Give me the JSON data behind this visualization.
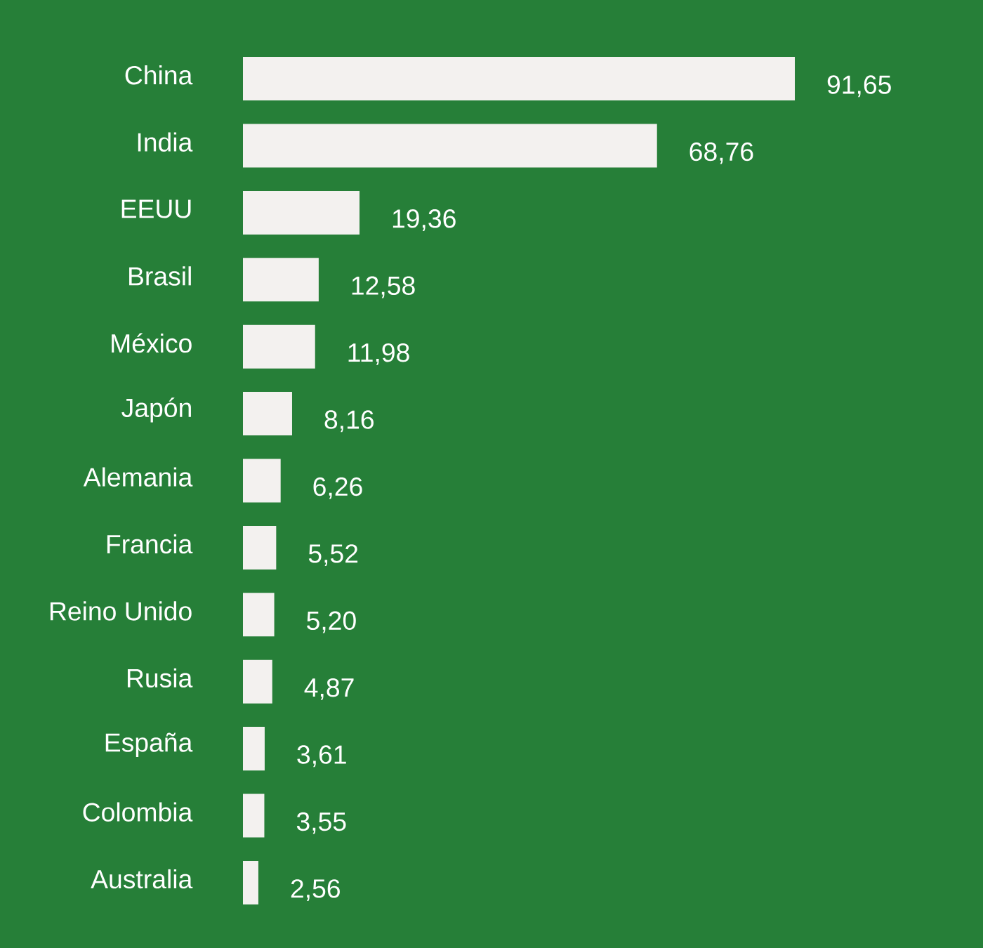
{
  "chart_data": {
    "type": "bar",
    "orientation": "horizontal",
    "categories": [
      "China",
      "India",
      "EEUU",
      "Brasil",
      "México",
      "Japón",
      "Alemania",
      "Francia",
      "Reino Unido",
      "Rusia",
      "España",
      "Colombia",
      "Australia"
    ],
    "values": [
      91.65,
      68.76,
      19.36,
      12.58,
      11.98,
      8.16,
      6.26,
      5.52,
      5.2,
      4.87,
      3.61,
      3.55,
      2.56
    ],
    "value_labels": [
      "91,65",
      "68,76",
      "19,36",
      "12,58",
      "11,98",
      "8,16",
      "6,26",
      "5,52",
      "5,20",
      "4,87",
      "3,61",
      "3,55",
      "2,56"
    ],
    "color": "#f3f1ef"
  }
}
